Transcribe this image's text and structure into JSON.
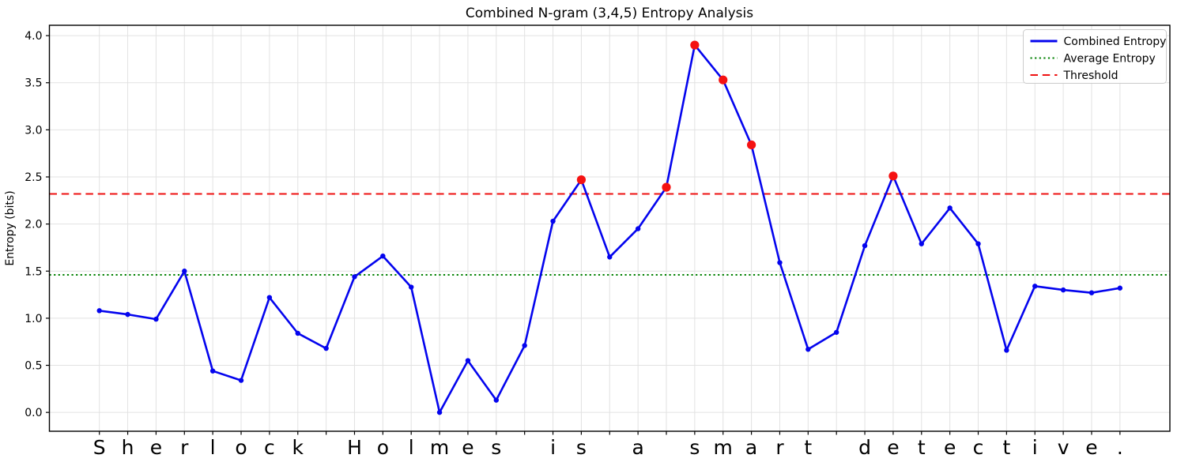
{
  "chart_data": {
    "type": "line",
    "title": "Combined N-gram (3,4,5) Entropy Analysis",
    "xlabel": "",
    "ylabel": "Entropy (bits)",
    "categories": [
      "S",
      "h",
      "e",
      "r",
      "l",
      "o",
      "c",
      "k",
      " ",
      "H",
      "o",
      "l",
      "m",
      "e",
      "s",
      " ",
      "i",
      "s",
      " ",
      "a",
      " ",
      "s",
      "m",
      "a",
      "r",
      "t",
      " ",
      "d",
      "e",
      "t",
      "e",
      "c",
      "t",
      "i",
      "v",
      "e",
      "."
    ],
    "series": [
      {
        "name": "Combined Entropy",
        "color": "#0404ee",
        "values": [
          1.08,
          1.04,
          0.99,
          1.5,
          0.44,
          0.34,
          1.22,
          0.84,
          0.68,
          1.44,
          1.66,
          1.33,
          0.0,
          0.55,
          0.13,
          0.71,
          2.03,
          2.47,
          1.65,
          1.95,
          2.39,
          3.9,
          3.53,
          2.84,
          1.59,
          0.67,
          0.85,
          1.77,
          2.51,
          1.79,
          2.17,
          1.79,
          0.66,
          1.34,
          1.3,
          1.27,
          1.32
        ]
      }
    ],
    "reference_lines": [
      {
        "name": "Average Entropy",
        "value": 1.46,
        "style": "dotted",
        "color": "#008000"
      },
      {
        "name": "Threshold",
        "value": 2.32,
        "style": "dashed",
        "color": "#ee1111"
      }
    ],
    "highlight": {
      "rule": "points-above-threshold",
      "threshold": 2.32,
      "marker_color": "#f51212",
      "indices": [
        17,
        20,
        21,
        22,
        23,
        28
      ]
    },
    "yticks": [
      0.0,
      0.5,
      1.0,
      1.5,
      2.0,
      2.5,
      3.0,
      3.5,
      4.0
    ],
    "ylim": [
      -0.2,
      4.11
    ],
    "grid": true,
    "legend": {
      "position": "top-right",
      "entries": [
        "Combined Entropy",
        "Average Entropy",
        "Threshold"
      ]
    }
  }
}
